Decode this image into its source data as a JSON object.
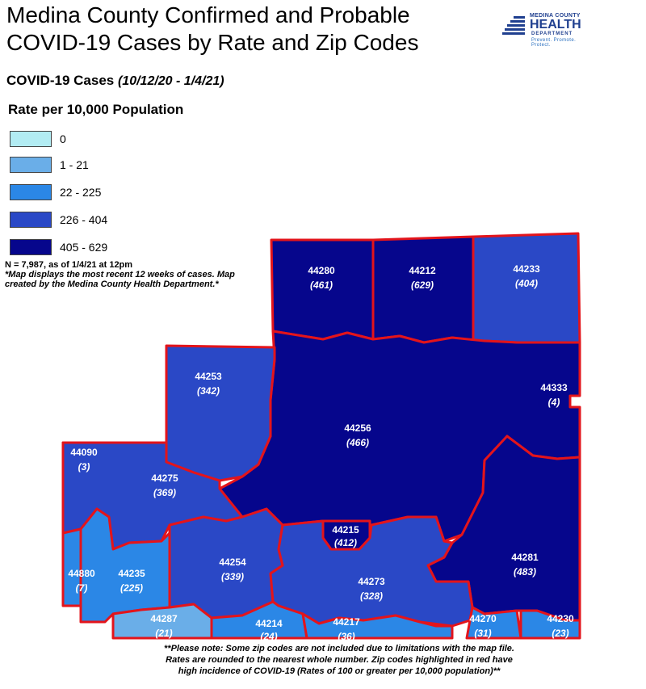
{
  "title_line1": "Medina County Confirmed and Probable",
  "title_line2": "COVID-19 Cases by Rate and Zip Codes",
  "logo": {
    "line1": "MEDINA COUNTY",
    "line2": "HEALTH",
    "line3": "DEPARTMENT",
    "tagline": "Prevent. Promote. Protect."
  },
  "subtitle": "COVID-19 Cases",
  "subtitle_dates": "(10/12/20 - 1/4/21)",
  "legend": {
    "title": "Rate per 10,000 Population",
    "items": [
      {
        "label": "0",
        "color": "#b2ecf3"
      },
      {
        "label": "1 - 21",
        "color": "#6aaee8"
      },
      {
        "label": "22 - 225",
        "color": "#2b87e6"
      },
      {
        "label": "226 - 404",
        "color": "#2a48c6"
      },
      {
        "label": "405 - 629",
        "color": "#06068c"
      }
    ]
  },
  "note": {
    "count": "N = 7,987, as of 1/4/21 at 12pm",
    "text": "*Map displays the most recent 12 weeks of cases. Map created by the Medina County Health Department.*"
  },
  "zips": [
    {
      "zip": "44280",
      "rate": "(461)"
    },
    {
      "zip": "44212",
      "rate": "(629)"
    },
    {
      "zip": "44233",
      "rate": "(404)"
    },
    {
      "zip": "44253",
      "rate": "(342)"
    },
    {
      "zip": "44333",
      "rate": "(4)"
    },
    {
      "zip": "44256",
      "rate": "(466)"
    },
    {
      "zip": "44090",
      "rate": "(3)"
    },
    {
      "zip": "44275",
      "rate": "(369)"
    },
    {
      "zip": "44215",
      "rate": "(412)"
    },
    {
      "zip": "44281",
      "rate": "(483)"
    },
    {
      "zip": "44880",
      "rate": "(7)"
    },
    {
      "zip": "44235",
      "rate": "(225)"
    },
    {
      "zip": "44254",
      "rate": "(339)"
    },
    {
      "zip": "44273",
      "rate": "(328)"
    },
    {
      "zip": "44287",
      "rate": "(21)"
    },
    {
      "zip": "44214",
      "rate": "(24)"
    },
    {
      "zip": "44217",
      "rate": "(36)"
    },
    {
      "zip": "44270",
      "rate": "(31)"
    },
    {
      "zip": "44230",
      "rate": "(23)"
    }
  ],
  "footnote": {
    "line1": "**Please note: Some zip codes are not included due to limitations with the map file.",
    "line2": "Rates are rounded to the nearest whole number. Zip codes highlighted in red have",
    "line3": "high incidence of COVID-19 (Rates of 100 or greater per 10,000 population)**"
  }
}
